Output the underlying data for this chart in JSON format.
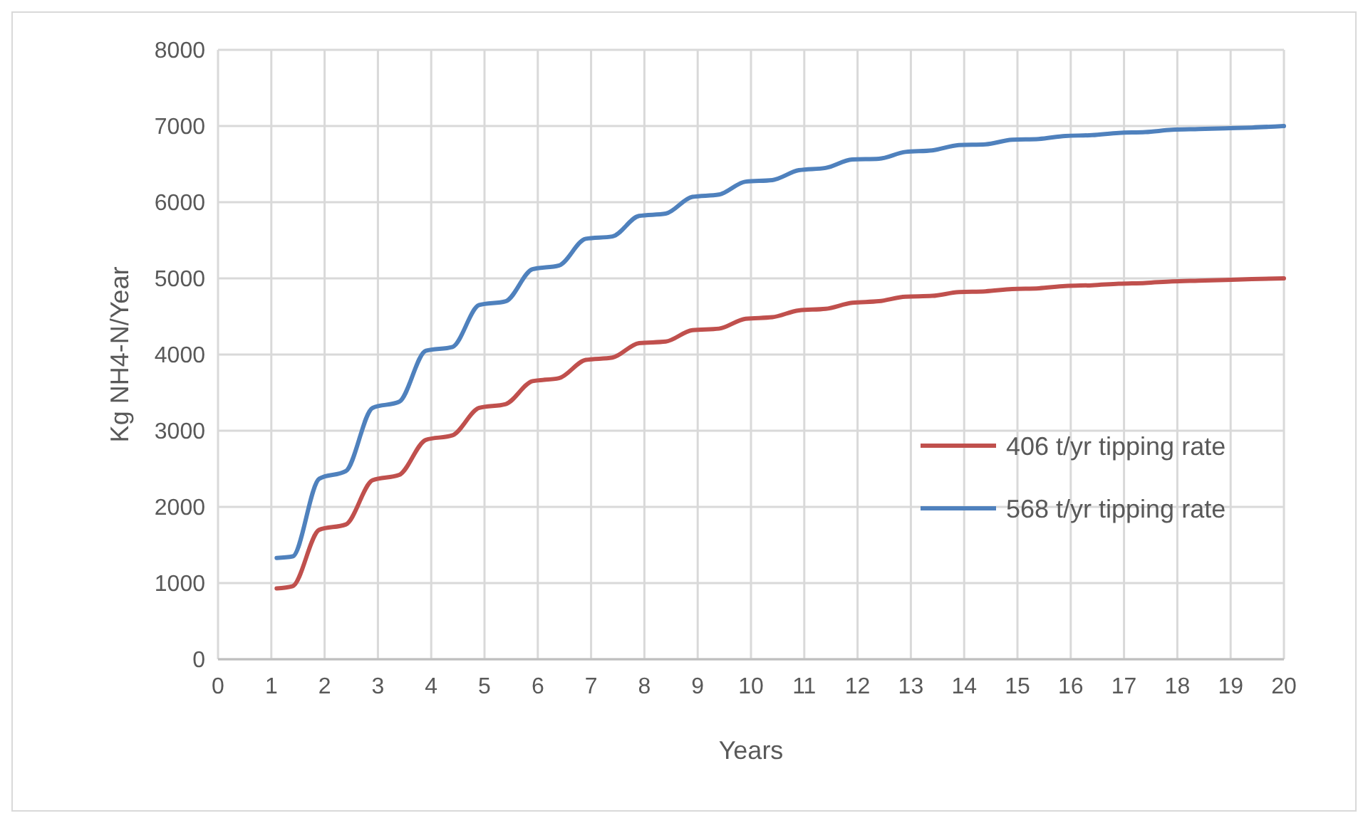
{
  "chart_data": {
    "type": "line",
    "xlabel": "Years",
    "ylabel": "Kg NH4-N/Year",
    "x": [
      1.1,
      1.4,
      1.9,
      2.4,
      2.9,
      3.4,
      3.9,
      4.4,
      4.9,
      5.4,
      5.9,
      6.4,
      6.9,
      7.4,
      7.9,
      8.4,
      8.9,
      9.4,
      9.9,
      10.4,
      10.9,
      11.4,
      11.9,
      12.4,
      12.9,
      13.4,
      13.9,
      14.4,
      14.9,
      15.4,
      15.9,
      16.4,
      16.9,
      17.4,
      17.9,
      18.4,
      18.9,
      19.4,
      20
    ],
    "series": [
      {
        "name": "406 t/yr tipping rate",
        "color": "#c0504d",
        "values": [
          930,
          960,
          1700,
          1770,
          2350,
          2420,
          2880,
          2940,
          3300,
          3350,
          3650,
          3690,
          3930,
          3960,
          4150,
          4170,
          4320,
          4340,
          4470,
          4490,
          4580,
          4600,
          4680,
          4700,
          4760,
          4770,
          4820,
          4830,
          4860,
          4870,
          4900,
          4910,
          4930,
          4940,
          4960,
          4970,
          4980,
          4990,
          5000
        ]
      },
      {
        "name": "568 t/yr tipping rate",
        "color": "#4f81bd",
        "values": [
          1330,
          1350,
          2370,
          2470,
          3300,
          3380,
          4050,
          4100,
          4650,
          4700,
          5120,
          5170,
          5520,
          5550,
          5820,
          5850,
          6070,
          6100,
          6270,
          6290,
          6420,
          6450,
          6560,
          6570,
          6660,
          6680,
          6750,
          6760,
          6820,
          6830,
          6870,
          6880,
          6910,
          6920,
          6950,
          6960,
          6970,
          6980,
          7000
        ]
      }
    ],
    "xlim": [
      0,
      20
    ],
    "xticks": [
      0,
      1,
      2,
      3,
      4,
      5,
      6,
      7,
      8,
      9,
      10,
      11,
      12,
      13,
      14,
      15,
      16,
      17,
      18,
      19,
      20
    ],
    "ylim": [
      0,
      8000
    ],
    "yticks": [
      0,
      1000,
      2000,
      3000,
      4000,
      5000,
      6000,
      7000,
      8000
    ],
    "grid": true,
    "legend": "right",
    "marker": "none",
    "line_style": "solid"
  }
}
